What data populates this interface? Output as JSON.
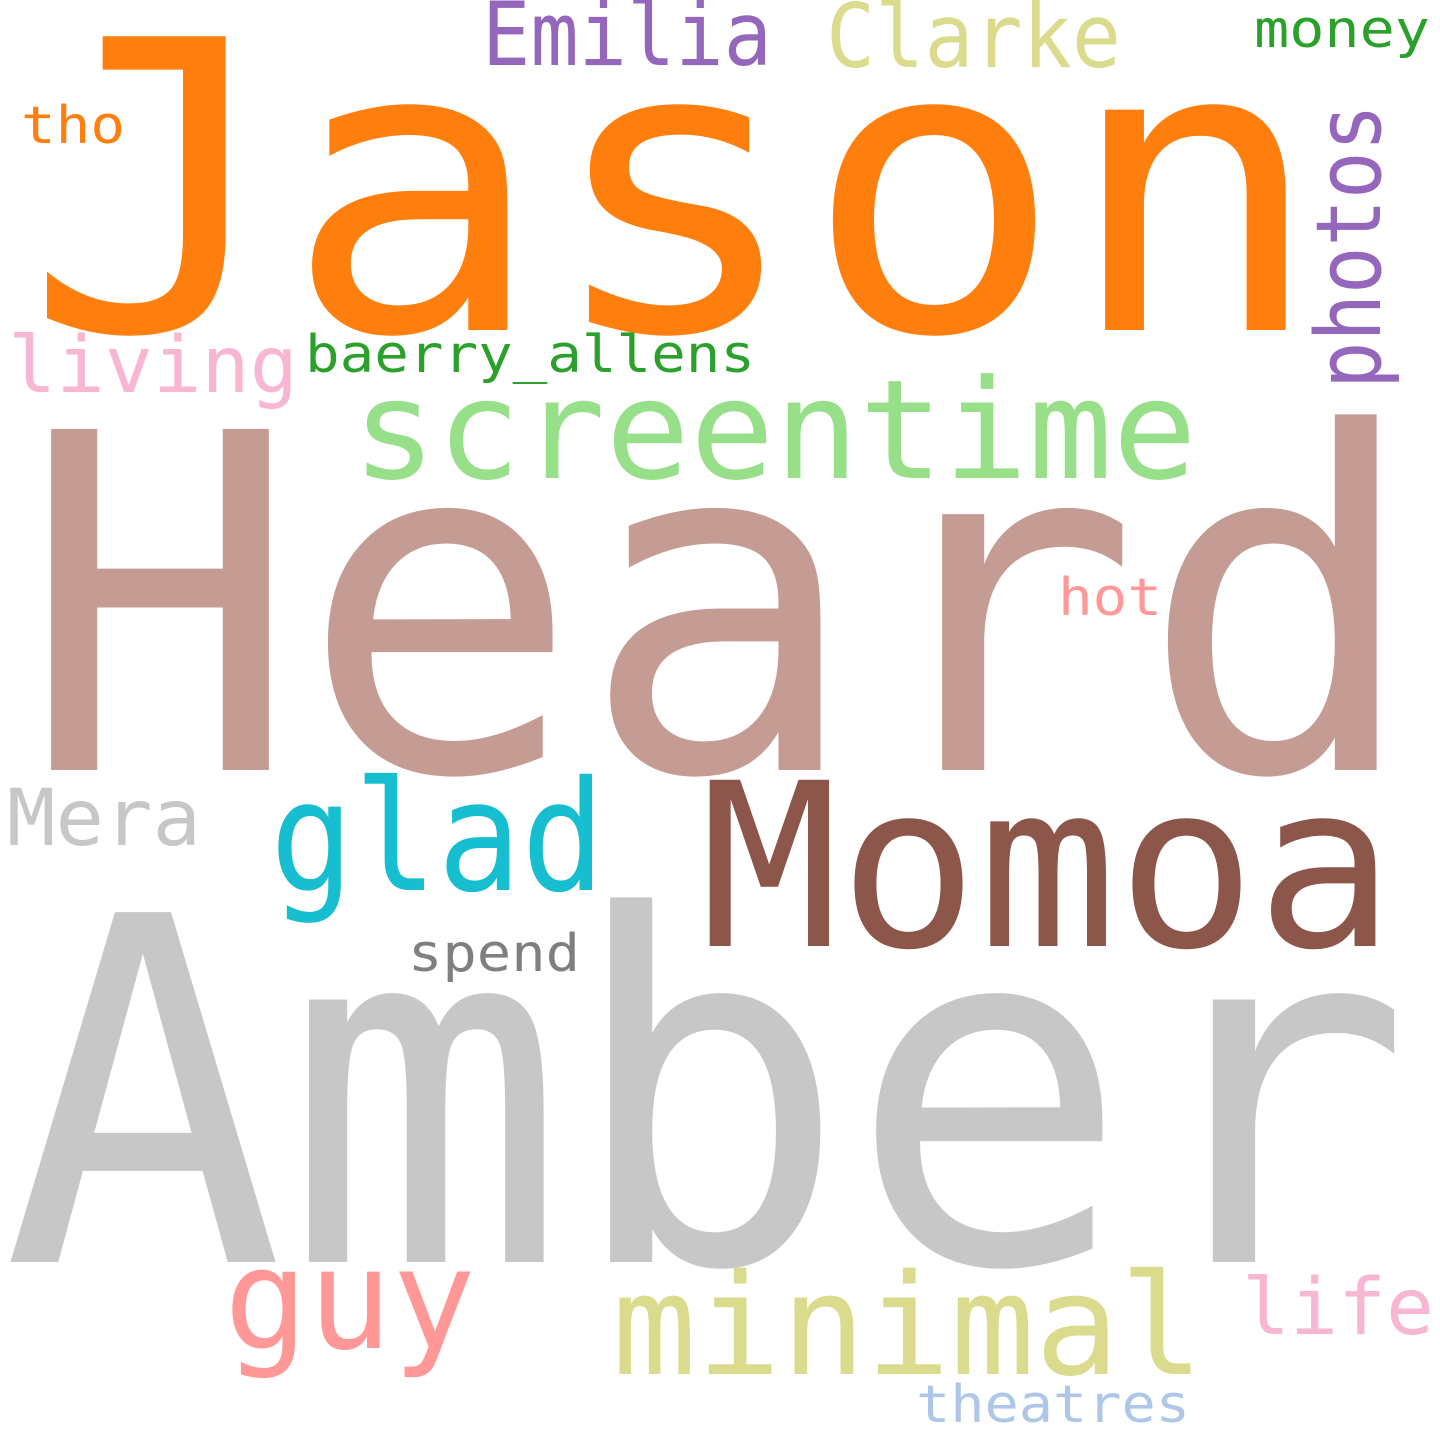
{
  "words": [
    {
      "text": "Jason",
      "color": "#ff7f0e",
      "orientation": "horizontal"
    },
    {
      "text": "Heard",
      "color": "#c49c94",
      "orientation": "horizontal"
    },
    {
      "text": "Amber",
      "color": "#c7c7c7",
      "orientation": "horizontal"
    },
    {
      "text": "Momoa",
      "color": "#8c564b",
      "orientation": "horizontal"
    },
    {
      "text": "screentime",
      "color": "#98df8a",
      "orientation": "horizontal"
    },
    {
      "text": "glad",
      "color": "#17becf",
      "orientation": "horizontal"
    },
    {
      "text": "minimal",
      "color": "#dbdb8d",
      "orientation": "horizontal"
    },
    {
      "text": "guy",
      "color": "#ff9896",
      "orientation": "horizontal"
    },
    {
      "text": "Emilia",
      "color": "#9467bd",
      "orientation": "horizontal"
    },
    {
      "text": "Clarke",
      "color": "#dbdb8d",
      "orientation": "horizontal"
    },
    {
      "text": "photos",
      "color": "#9467bd",
      "orientation": "vertical"
    },
    {
      "text": "living",
      "color": "#f7b6d2",
      "orientation": "horizontal"
    },
    {
      "text": "baerry_allens",
      "color": "#2ca02c",
      "orientation": "horizontal"
    },
    {
      "text": "Mera",
      "color": "#c7c7c7",
      "orientation": "horizontal"
    },
    {
      "text": "life",
      "color": "#f7b6d2",
      "orientation": "horizontal"
    },
    {
      "text": "money",
      "color": "#2ca02c",
      "orientation": "horizontal"
    },
    {
      "text": "tho",
      "color": "#ff7f0e",
      "orientation": "horizontal"
    },
    {
      "text": "hot",
      "color": "#ff9896",
      "orientation": "horizontal"
    },
    {
      "text": "spend",
      "color": "#7f7f7f",
      "orientation": "horizontal"
    },
    {
      "text": "theatres",
      "color": "#aec7e8",
      "orientation": "horizontal"
    }
  ]
}
